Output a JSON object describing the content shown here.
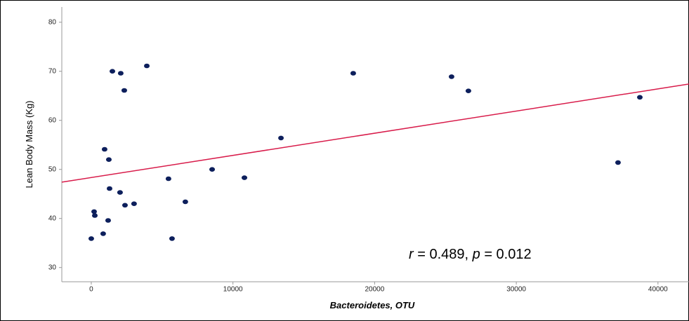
{
  "chart_data": {
    "type": "scatter",
    "x_label": "Bacteroidetes, OTU",
    "y_label": "Lean Body Mass (Kg)",
    "annotation": [
      "r",
      " = 0.489, ",
      "p",
      " = 0.012"
    ],
    "color": "#0d1f5c",
    "x": [
      0,
      200,
      250,
      840,
      940,
      1190,
      1240,
      1290,
      1490,
      2030,
      2080,
      2330,
      2380,
      3020,
      3920,
      5450,
      5700,
      6640,
      8530,
      10810,
      13390,
      18490,
      25430,
      26620,
      37180,
      38720
    ],
    "values": [
      35.9,
      41.4,
      40.6,
      36.9,
      54.1,
      39.6,
      52.0,
      46.1,
      70.0,
      45.3,
      69.6,
      66.1,
      42.7,
      43.0,
      71.1,
      48.1,
      35.9,
      43.4,
      50.0,
      48.3,
      56.4,
      69.6,
      68.9,
      66.0,
      51.4,
      64.7
    ],
    "fit_line": {
      "x": [
        -2080,
        42190
      ],
      "values": [
        47.4,
        67.4
      ],
      "color": "#d81b4a"
    },
    "xlim": [
      -2080,
      42190
    ],
    "ylim": [
      27.1,
      83.1
    ],
    "xticks": [
      0,
      10000,
      20000,
      30000,
      40000
    ],
    "yticks": [
      30,
      40,
      50,
      60,
      70,
      80
    ]
  }
}
